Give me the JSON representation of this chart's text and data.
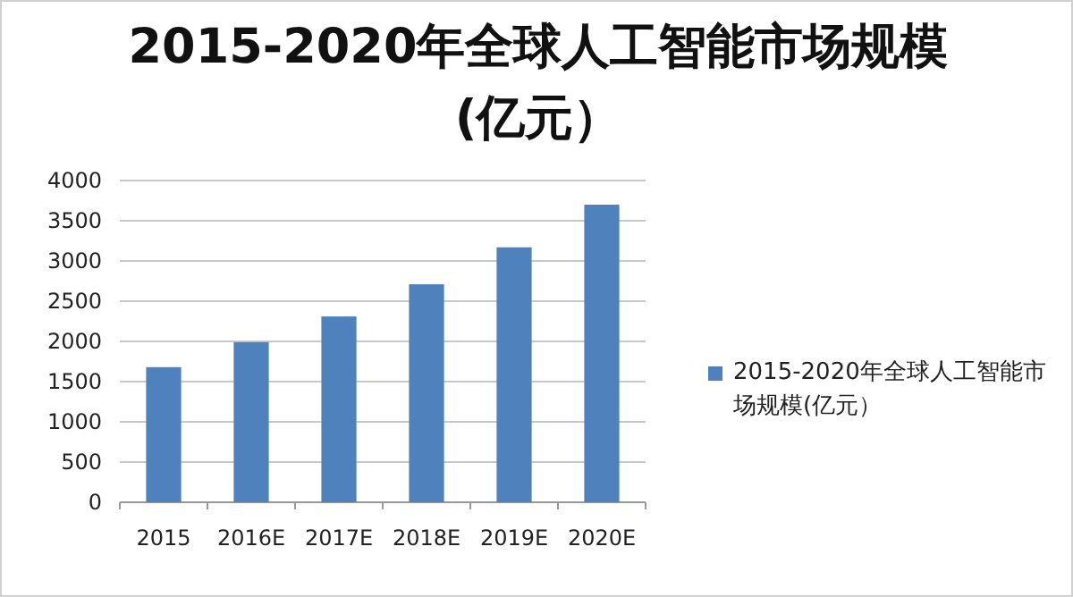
{
  "chart_data": {
    "type": "bar",
    "title": "2015-2020年全球人工智能市场规模(亿元）",
    "categories": [
      "2015",
      "2016E",
      "2017E",
      "2018E",
      "2019E",
      "2020E"
    ],
    "series": [
      {
        "name": "2015-2020年全球人工智能市场规模(亿元）",
        "color": "#4f81bd",
        "values": [
          1680,
          1990,
          2310,
          2710,
          3170,
          3700
        ]
      }
    ],
    "ylim": [
      0,
      4000
    ],
    "yticks": [
      0,
      500,
      1000,
      1500,
      2000,
      2500,
      3000,
      3500,
      4000
    ],
    "grid": "y",
    "legend": "right"
  }
}
